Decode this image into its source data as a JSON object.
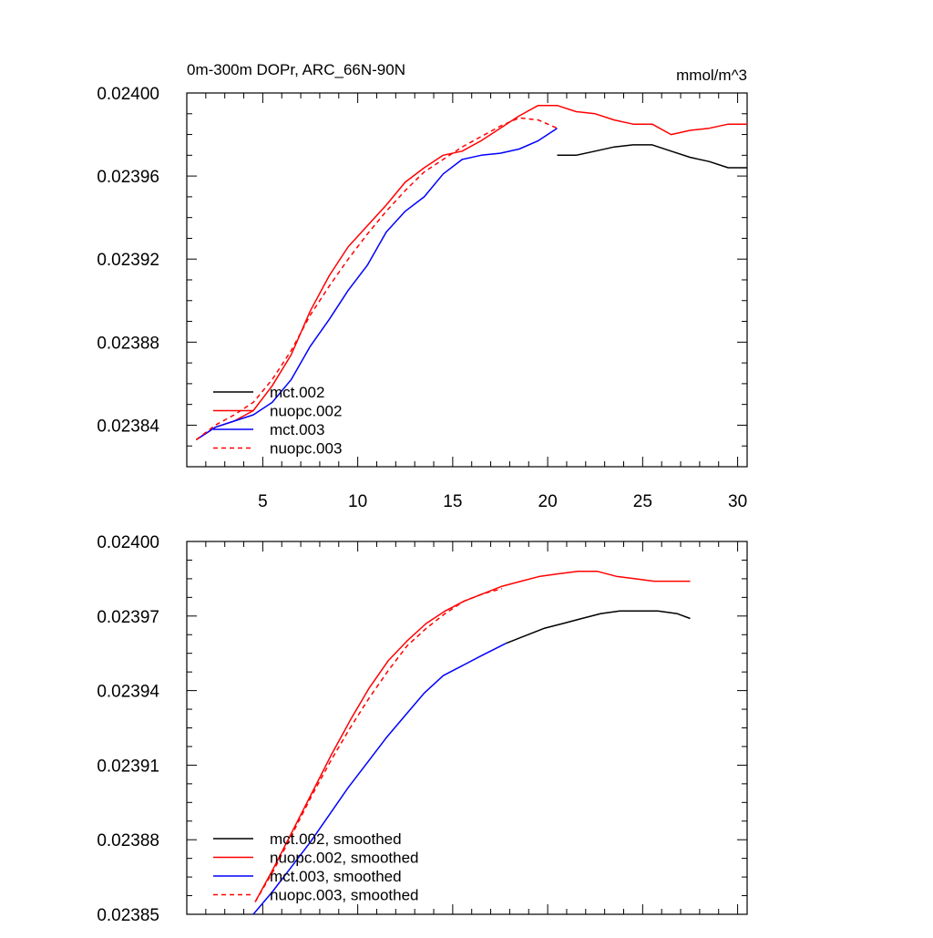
{
  "chart_data": [
    {
      "type": "line",
      "title": "0m-300m DOPr, ARC_66N-90N",
      "units": "mmol/m^3",
      "xlim": [
        1,
        30.5
      ],
      "ylim": [
        0.02382,
        0.024
      ],
      "x_ticks": [
        5,
        10,
        15,
        20,
        25,
        30
      ],
      "x_tick_labels": [
        "5",
        "10",
        "15",
        "20",
        "25",
        "30"
      ],
      "y_ticks": [
        0.02384,
        0.02388,
        0.02392,
        0.02396,
        0.024
      ],
      "y_tick_labels": [
        "0.02384",
        "0.02388",
        "0.02392",
        "0.02396",
        "0.02400"
      ],
      "legend_position": "bottom-left",
      "series": [
        {
          "name": "mct.002",
          "color": "#000000",
          "dash": "solid",
          "x": [
            20.5,
            21.5,
            22.5,
            23.5,
            24.5,
            25.5,
            26.5,
            27.5,
            28.5,
            29.5,
            30.5
          ],
          "y": [
            0.02397,
            0.02397,
            0.023972,
            0.023974,
            0.023975,
            0.023975,
            0.023972,
            0.023969,
            0.023967,
            0.023964,
            0.023964
          ]
        },
        {
          "name": "nuopc.002",
          "color": "#ff0000",
          "dash": "solid",
          "x": [
            1.5,
            2.5,
            3.5,
            4.5,
            5.5,
            6.5,
            7.5,
            8.5,
            9.5,
            10.5,
            11.5,
            12.5,
            13.5,
            14.5,
            15.5,
            16.5,
            17.5,
            18.5,
            19.5,
            20.5,
            21.5,
            22.5,
            23.5,
            24.5,
            25.5,
            26.5,
            27.5,
            28.5,
            29.5,
            30.5
          ],
          "y": [
            0.023833,
            0.023839,
            0.023842,
            0.023847,
            0.023859,
            0.023874,
            0.023895,
            0.023912,
            0.023926,
            0.023936,
            0.023946,
            0.023957,
            0.023964,
            0.02397,
            0.023972,
            0.023977,
            0.023983,
            0.023989,
            0.023994,
            0.023994,
            0.023991,
            0.02399,
            0.023987,
            0.023985,
            0.023985,
            0.02398,
            0.023982,
            0.023983,
            0.023985,
            0.023985
          ]
        },
        {
          "name": "mct.003",
          "color": "#0000ff",
          "dash": "solid",
          "x": [
            1.5,
            2.5,
            3.5,
            4.5,
            5.5,
            6.5,
            7.5,
            8.5,
            9.5,
            10.5,
            11.5,
            12.5,
            13.5,
            14.5,
            15.5,
            16.5,
            17.5,
            18.5,
            19.5,
            20.5
          ],
          "y": [
            0.023833,
            0.023839,
            0.023842,
            0.023845,
            0.023851,
            0.023862,
            0.023878,
            0.023891,
            0.023905,
            0.023917,
            0.023933,
            0.023943,
            0.02395,
            0.023961,
            0.023968,
            0.02397,
            0.023971,
            0.023973,
            0.023977,
            0.023983
          ]
        },
        {
          "name": "nuopc.003",
          "color": "#ff0000",
          "dash": "dashed",
          "x": [
            1.5,
            2.5,
            3.5,
            4.5,
            5.5,
            6.5,
            7.5,
            8.5,
            9.5,
            10.5,
            11.5,
            12.5,
            13.5,
            14.5,
            15.5,
            16.5,
            17.5,
            18.5,
            19.5,
            20.5
          ],
          "y": [
            0.023833,
            0.02384,
            0.023845,
            0.023851,
            0.023862,
            0.023876,
            0.023893,
            0.023907,
            0.02392,
            0.023932,
            0.023943,
            0.023953,
            0.023962,
            0.023968,
            0.023974,
            0.023979,
            0.023984,
            0.023988,
            0.023987,
            0.023983
          ]
        }
      ]
    },
    {
      "type": "line",
      "xlim": [
        1,
        30.5
      ],
      "ylim": [
        0.02385,
        0.024
      ],
      "x_ticks": [
        5,
        10,
        15,
        20,
        25,
        30
      ],
      "y_ticks": [
        0.02385,
        0.02388,
        0.02391,
        0.02394,
        0.02397,
        0.024
      ],
      "y_tick_labels": [
        "0.02385",
        "0.02388",
        "0.02391",
        "0.02394",
        "0.02397",
        "0.02400"
      ],
      "legend_position": "bottom-left",
      "series": [
        {
          "name": "mct.002, smoothed",
          "color": "#000000",
          "dash": "solid",
          "x": [
            17.8,
            18.8,
            19.8,
            20.8,
            21.8,
            22.8,
            23.8,
            24.8,
            25.8,
            26.8,
            27.5
          ],
          "y": [
            0.023959,
            0.023962,
            0.023965,
            0.023967,
            0.023969,
            0.023971,
            0.023972,
            0.023972,
            0.023972,
            0.023971,
            0.023969
          ]
        },
        {
          "name": "nuopc.002, smoothed",
          "color": "#ff0000",
          "dash": "solid",
          "x": [
            4.6,
            5.6,
            6.6,
            7.6,
            8.6,
            9.6,
            10.6,
            11.6,
            12.6,
            13.6,
            14.6,
            15.6,
            16.6,
            17.6,
            18.6,
            19.6,
            20.6,
            21.6,
            22.6,
            23.6,
            24.6,
            25.6,
            26.6,
            27.5
          ],
          "y": [
            0.023855,
            0.023869,
            0.023884,
            0.023899,
            0.023914,
            0.023928,
            0.023941,
            0.023952,
            0.02396,
            0.023967,
            0.023972,
            0.023976,
            0.023979,
            0.023982,
            0.023984,
            0.023986,
            0.023987,
            0.023988,
            0.023988,
            0.023986,
            0.023985,
            0.023984,
            0.023984,
            0.023984
          ]
        },
        {
          "name": "mct.003, smoothed",
          "color": "#0000ff",
          "dash": "solid",
          "x": [
            4.5,
            5.5,
            6.5,
            7.5,
            8.5,
            9.5,
            10.5,
            11.5,
            12.5,
            13.5,
            14.5,
            15.5,
            16.5,
            17.8
          ],
          "y": [
            0.02385,
            0.023859,
            0.023869,
            0.023879,
            0.02389,
            0.023901,
            0.023911,
            0.023921,
            0.02393,
            0.023939,
            0.023946,
            0.02395,
            0.023954,
            0.023959
          ]
        },
        {
          "name": "nuopc.003, smoothed",
          "color": "#ff0000",
          "dash": "dashed",
          "x": [
            4.6,
            5.6,
            6.6,
            7.6,
            8.6,
            9.6,
            10.6,
            11.6,
            12.6,
            13.6,
            14.6,
            15.6,
            16.6,
            17.6
          ],
          "y": [
            0.023855,
            0.023868,
            0.023883,
            0.023898,
            0.023912,
            0.023925,
            0.023937,
            0.023948,
            0.023958,
            0.023965,
            0.023971,
            0.023976,
            0.023979,
            0.023981
          ]
        }
      ]
    }
  ]
}
